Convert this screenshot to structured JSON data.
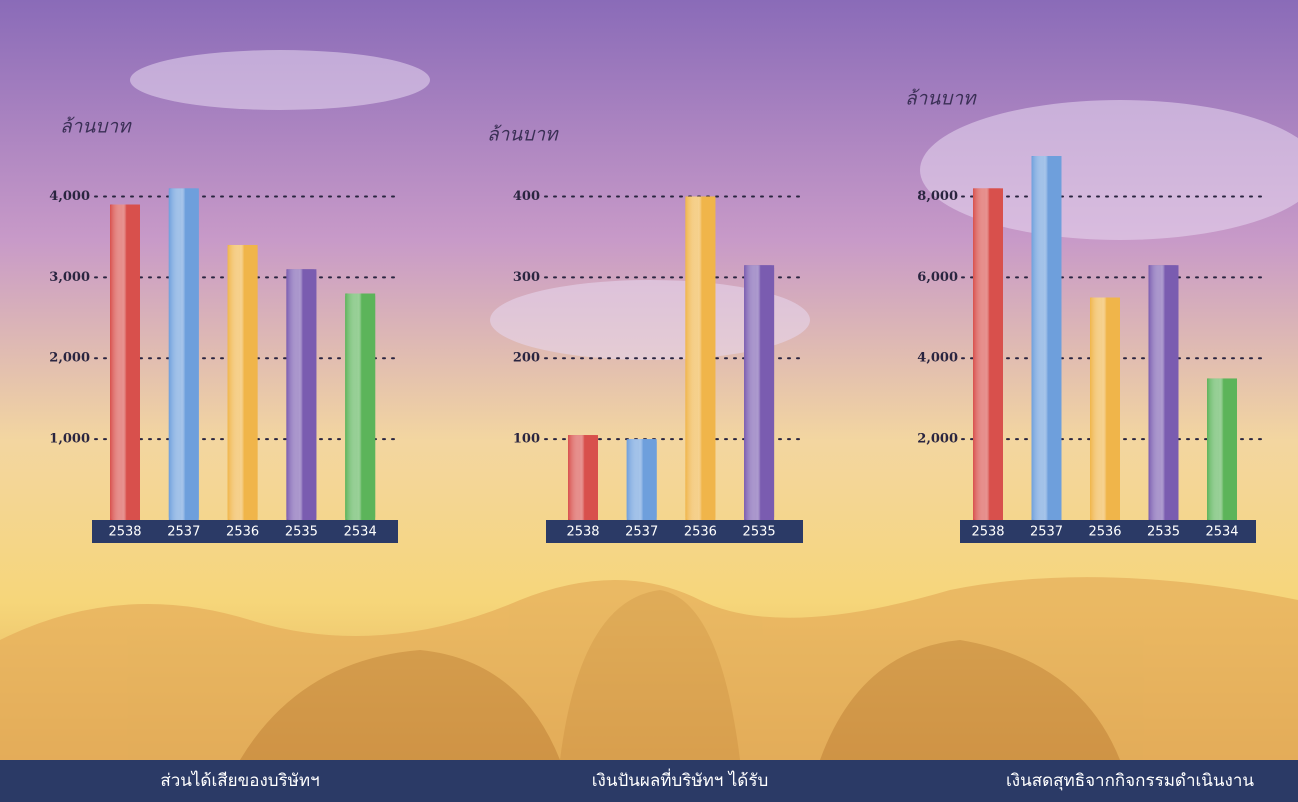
{
  "chart_data": [
    {
      "type": "bar",
      "title": "ส่วนได้เสียของบริษัทฯ",
      "y_label": "ล้านบาท",
      "categories": [
        "2538",
        "2537",
        "2536",
        "2535",
        "2534"
      ],
      "values": [
        3900,
        4100,
        3400,
        3100,
        2800
      ],
      "colors": [
        "#d8504c",
        "#6e9fdc",
        "#f0b54a",
        "#7a5cb0",
        "#5cb45a"
      ],
      "ylim": [
        0,
        4500
      ],
      "yticks": [
        {
          "value": 1000,
          "label": "1,000"
        },
        {
          "value": 2000,
          "label": "2,000"
        },
        {
          "value": 3000,
          "label": "3,000"
        },
        {
          "value": 4000,
          "label": "4,000"
        }
      ],
      "grid": true
    },
    {
      "type": "bar",
      "title": "เงินปันผลที่บริษัทฯ ได้รับ",
      "y_label": "ล้านบาท",
      "categories": [
        "2538",
        "2537",
        "2536",
        "2535"
      ],
      "values": [
        105,
        100,
        400,
        315
      ],
      "colors": [
        "#d8504c",
        "#6e9fdc",
        "#f0b54a",
        "#7a5cb0"
      ],
      "ylim": [
        0,
        450
      ],
      "yticks": [
        100,
        200,
        300,
        400
      ],
      "grid": true
    },
    {
      "type": "bar",
      "title": "เงินสดสุทธิจากกิจกรรมดำเนินงาน",
      "y_label": "ล้านบาท",
      "categories": [
        "2538",
        "2537",
        "2536",
        "2535",
        "2534"
      ],
      "values": [
        8200,
        9000,
        5500,
        6300,
        3500
      ],
      "colors": [
        "#d8504c",
        "#6e9fdc",
        "#f0b54a",
        "#7a5cb0",
        "#5cb45a"
      ],
      "ylim": [
        0,
        9000
      ],
      "yticks": [
        {
          "value": 2000,
          "label": "2,000"
        },
        {
          "value": 4000,
          "label": "4,000"
        },
        {
          "value": 6000,
          "label": "6,000"
        },
        {
          "value": 8000,
          "label": "8,000"
        }
      ],
      "grid": true
    }
  ]
}
